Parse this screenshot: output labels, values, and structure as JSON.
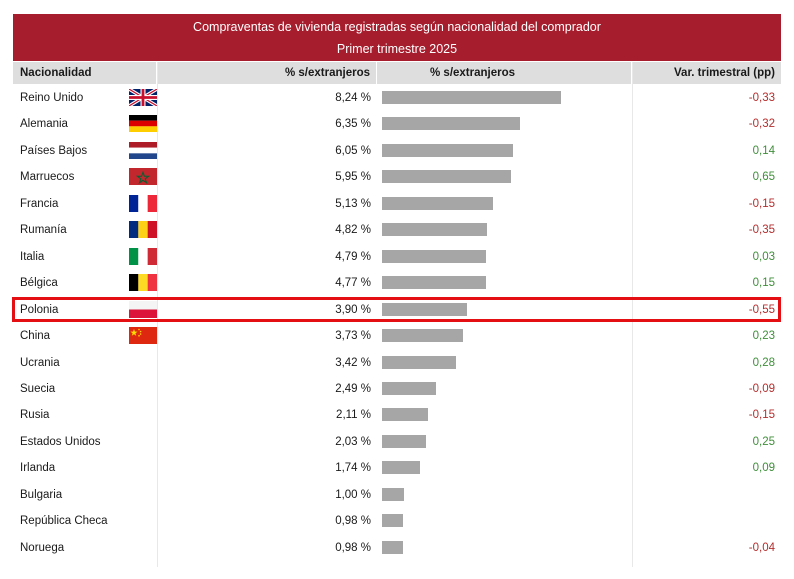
{
  "title": "Compraventas de vivienda registradas según nacionalidad del comprador",
  "subtitle": "Primer trimestre 2025",
  "headers": {
    "nationality": "Nacionalidad",
    "pct": "% s/extranjeros",
    "pct_bar": "% s/extranjeros",
    "var": "Var. trimestral (pp)"
  },
  "highlighted_row": "Polonia",
  "colors": {
    "title_bg": "#a61d2d",
    "bar": "#a6a6a6",
    "negative": "#b32e2e",
    "positive": "#3f8e3a",
    "highlight": "#e30f13"
  },
  "chart_data": {
    "type": "bar",
    "orientation": "horizontal",
    "title": "Compraventas de vivienda registradas según nacionalidad del comprador",
    "subtitle": "Primer trimestre 2025",
    "xlim": [
      0,
      8.24
    ],
    "categories": [
      "Reino Unido",
      "Alemania",
      "Países Bajos",
      "Marruecos",
      "Francia",
      "Rumanía",
      "Italia",
      "Bélgica",
      "Polonia",
      "China",
      "Ucrania",
      "Suecia",
      "Rusia",
      "Estados Unidos",
      "Irlanda",
      "Bulgaria",
      "República Checa",
      "Noruega"
    ],
    "values": [
      8.24,
      6.35,
      6.05,
      5.95,
      5.13,
      4.82,
      4.79,
      4.77,
      3.9,
      3.73,
      3.42,
      2.49,
      2.11,
      2.03,
      1.74,
      1.0,
      0.98,
      0.98
    ],
    "value_labels": [
      "8,24 %",
      "6,35 %",
      "6,05 %",
      "5,95 %",
      "5,13 %",
      "4,82 %",
      "4,79 %",
      "4,77 %",
      "3,90 %",
      "3,73 %",
      "3,42 %",
      "2,49 %",
      "2,11 %",
      "2,03 %",
      "1,74 %",
      "1,00 %",
      "0,98 %",
      "0,98 %"
    ],
    "var_trimestral": [
      "-0,33",
      "-0,32",
      "0,14",
      "0,65",
      "-0,15",
      "-0,35",
      "0,03",
      "0,15",
      "-0,55",
      "0,23",
      "0,28",
      "-0,09",
      "-0,15",
      "0,25",
      "0,09",
      "",
      "",
      "-0,04"
    ],
    "flags": [
      "uk",
      "de",
      "nl",
      "ma",
      "fr",
      "ro",
      "it",
      "be",
      "pl",
      "cn",
      "",
      "",
      "",
      "",
      "",
      "",
      "",
      ""
    ]
  }
}
